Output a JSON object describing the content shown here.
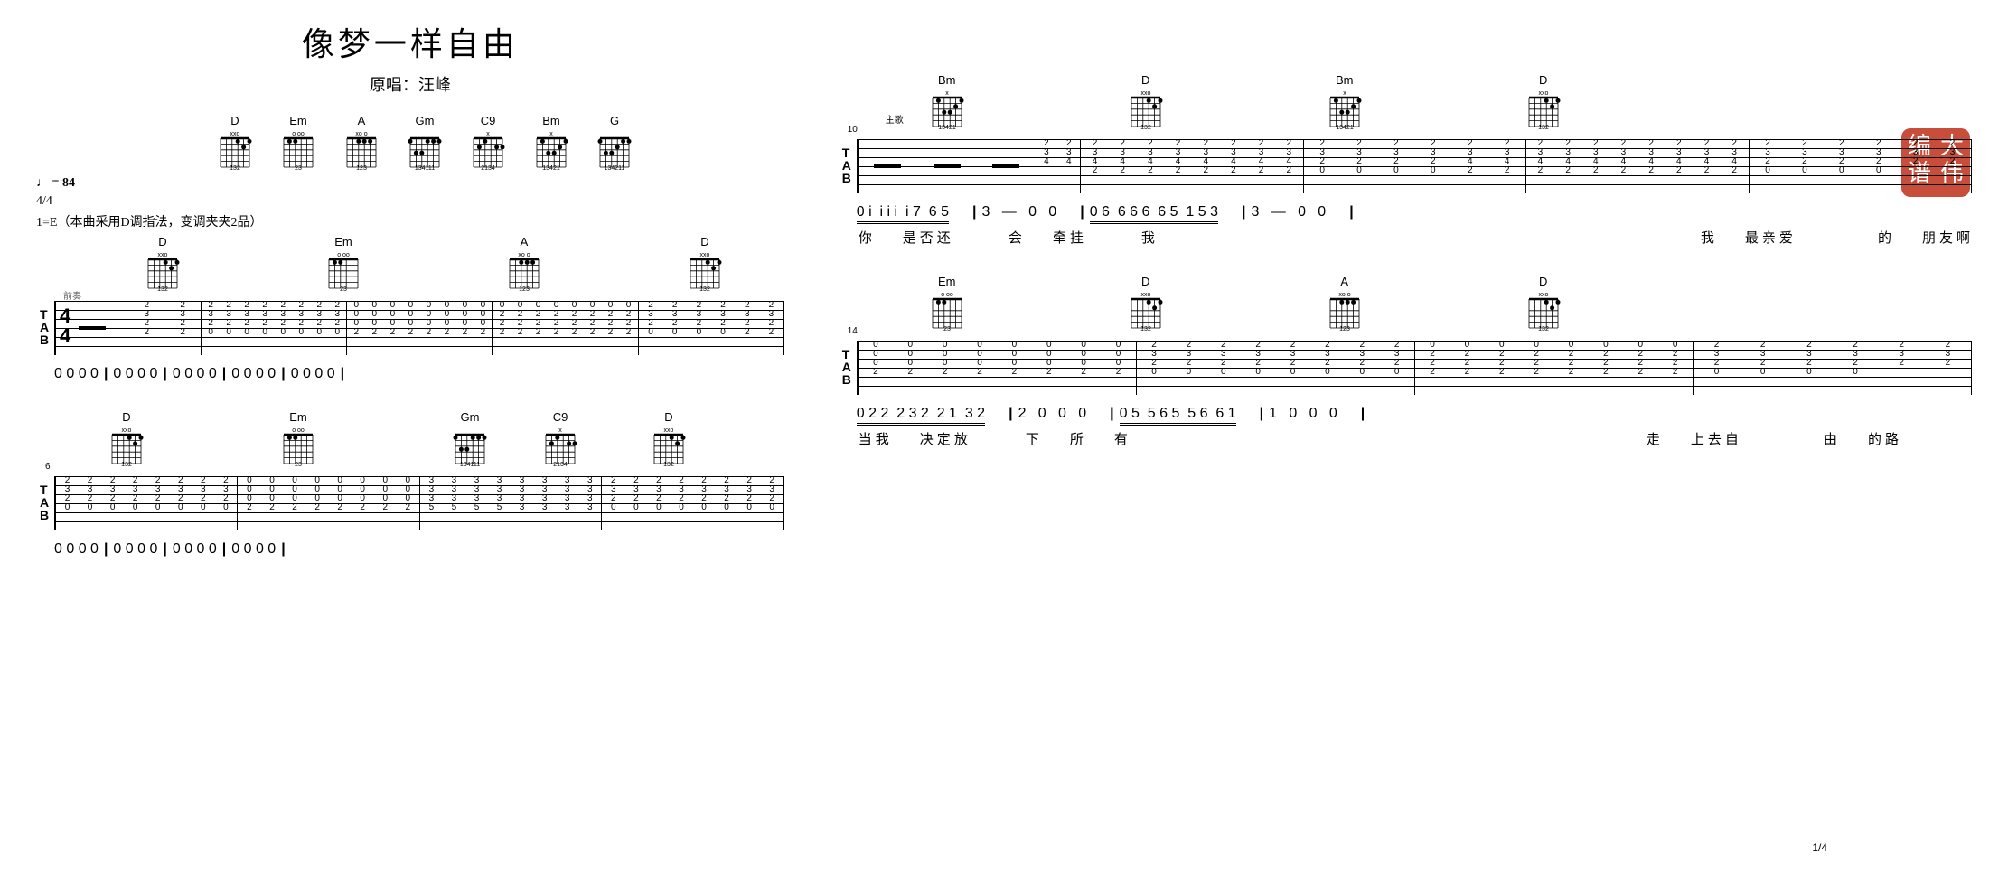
{
  "title": "像梦一样自由",
  "subtitle_prefix": "原唱：",
  "artist": "汪峰",
  "tempo_symbol": "♩",
  "tempo_value": "= 84",
  "timesig": "4/4",
  "key_note": "1=E（本曲采用D调指法，变调夹夹2品）",
  "stamp_text": [
    "大",
    "伟",
    "编",
    "谱"
  ],
  "pagenum": "1/4",
  "intro_label": "前奏",
  "verse_label": "主歌",
  "chord_defs": {
    "D": {
      "name": "D",
      "muted": "xxo",
      "fingers": "132",
      "frets": [
        [
          -1,
          -1,
          0,
          2,
          3,
          2
        ]
      ]
    },
    "Em": {
      "name": "Em",
      "muted": "o   oo",
      "fingers": "23",
      "frets": [
        [
          0,
          2,
          2,
          0,
          0,
          0
        ]
      ]
    },
    "A": {
      "name": "A",
      "muted": "xo   o",
      "fingers": "123",
      "frets": [
        [
          -1,
          0,
          2,
          2,
          2,
          0
        ]
      ]
    },
    "Gm": {
      "name": "Gm",
      "muted": "",
      "fingers": "134111",
      "frets": [
        [
          3,
          5,
          5,
          3,
          3,
          3
        ]
      ]
    },
    "C9": {
      "name": "C9",
      "muted": "x",
      "fingers": "2134",
      "frets": [
        [
          -1,
          3,
          2,
          0,
          3,
          3
        ]
      ]
    },
    "Bm": {
      "name": "Bm",
      "muted": "x",
      "fingers": "13421",
      "frets": [
        [
          -1,
          2,
          4,
          4,
          3,
          2
        ]
      ]
    },
    "G": {
      "name": "G",
      "muted": "",
      "fingers": "134211",
      "frets": [
        [
          3,
          5,
          5,
          4,
          3,
          3
        ]
      ]
    }
  },
  "header_chords": [
    "D",
    "Em",
    "A",
    "Gm",
    "C9",
    "Bm",
    "G"
  ],
  "systems_left": [
    {
      "num": "",
      "chords": [
        "D",
        "Em",
        "A",
        "D"
      ],
      "chord_pos": [
        80,
        280,
        480,
        680
      ],
      "tab_measures": [
        {
          "timesig": true,
          "beats": [
            {
              "rest": true
            },
            {
              "s": [
                "2",
                "3",
                "2"
              ],
              "f": [
                2,
                3,
                4
              ]
            },
            {
              "s": [
                "2",
                "3",
                "2"
              ],
              "f": [
                2,
                3,
                4
              ]
            }
          ]
        },
        {
          "beats": [
            {
              "s": [
                "2",
                "3",
                "2",
                "0"
              ],
              "f": [
                1,
                2,
                3,
                4
              ],
              "rep": 4
            },
            {
              "s": [
                "2",
                "3",
                "2",
                "0"
              ],
              "f": [
                1,
                2,
                3,
                4
              ],
              "rep": 4
            }
          ]
        },
        {
          "beats": [
            {
              "s": [
                "0",
                "0",
                "0",
                "2"
              ],
              "f": [
                1,
                2,
                3,
                4
              ],
              "rep": 4
            },
            {
              "s": [
                "0",
                "0",
                "0",
                "2"
              ],
              "f": [
                1,
                2,
                3,
                4
              ],
              "rep": 4
            }
          ]
        },
        {
          "beats": [
            {
              "s": [
                "0",
                "2",
                "2",
                "2"
              ],
              "f": [
                1,
                2,
                3,
                4
              ],
              "rep": 4
            },
            {
              "s": [
                "0",
                "2",
                "2",
                "2"
              ],
              "f": [
                1,
                2,
                3,
                4
              ],
              "rep": 4
            }
          ]
        },
        {
          "beats": [
            {
              "s": [
                "2",
                "3",
                "2",
                "0"
              ],
              "f": [
                1,
                2,
                3,
                4
              ],
              "rep": 4
            },
            {
              "s": [
                "2",
                "3",
                "2"
              ],
              "f": [
                2,
                3,
                4
              ],
              "rep": 2
            }
          ]
        }
      ],
      "jianpu": "0 0 0 0 | 0   0   0   0 | 0   0   0   0 | 0   0   0   0 | 0   0   0   0",
      "lyrics": ""
    },
    {
      "num": "6",
      "chords": [
        "D",
        "Em",
        "Gm",
        "C9",
        "D"
      ],
      "chord_pos": [
        40,
        230,
        420,
        520,
        640
      ],
      "tab_measures": [
        {
          "beats": [
            {
              "s": [
                "2",
                "3",
                "2",
                "0"
              ],
              "rep": 4
            },
            {
              "s": [
                "2",
                "3",
                "2",
                "0"
              ],
              "rep": 4
            }
          ]
        },
        {
          "beats": [
            {
              "s": [
                "0",
                "0",
                "0",
                "2"
              ],
              "rep": 4
            },
            {
              "s": [
                "0",
                "0",
                "0",
                "2"
              ],
              "rep": 4
            }
          ]
        },
        {
          "beats": [
            {
              "s": [
                "3",
                "3",
                "3",
                "5"
              ],
              "rep": 4
            },
            {
              "s": [
                "3",
                "3",
                "3",
                "3"
              ],
              "rep": 4
            }
          ]
        },
        {
          "beats": [
            {
              "s": [
                "2",
                "3",
                "2",
                "0"
              ],
              "rep": 4
            },
            {
              "s": [
                "2",
                "3",
                "2",
                "0"
              ],
              "rep": 4
            }
          ]
        }
      ],
      "jianpu": "0   0   0   0 | 0   0   0   0 | 0   0   0   0 | 0   0   0   0",
      "lyrics": ""
    }
  ],
  "systems_right": [
    {
      "num": "10",
      "chords": [
        "Bm",
        "D",
        "Bm",
        "D"
      ],
      "chord_pos": [
        60,
        280,
        500,
        720
      ],
      "tab_measures": [
        {
          "beats": [
            {
              "rest": true
            },
            {
              "rest": true
            },
            {
              "rest": true
            },
            {
              "s": [
                "2",
                "3",
                "4"
              ],
              "rep": 2
            }
          ]
        },
        {
          "beats": [
            {
              "s": [
                "2",
                "3",
                "4",
                "2"
              ],
              "rep": 4
            },
            {
              "s": [
                "2",
                "3",
                "4",
                "2"
              ],
              "rep": 4
            }
          ]
        },
        {
          "beats": [
            {
              "s": [
                "2",
                "3",
                "2",
                "0"
              ],
              "rep": 4
            },
            {
              "s": [
                "2",
                "3",
                "4",
                "2"
              ],
              "rep": 2
            }
          ]
        },
        {
          "beats": [
            {
              "s": [
                "2",
                "3",
                "4",
                "2"
              ],
              "rep": 4
            },
            {
              "s": [
                "2",
                "3",
                "4",
                "2"
              ],
              "rep": 4
            }
          ]
        },
        {
          "beats": [
            {
              "s": [
                "2",
                "3",
                "2",
                "0"
              ],
              "rep": 4
            },
            {
              "s": [
                "2",
                "3",
                "2"
              ],
              "rep": 2
            }
          ]
        }
      ],
      "jianpu_parts": [
        {
          "notes": "0 i  i i i  i 7  6 5",
          "underline": true
        },
        {
          "notes": "3   —   0   0",
          "underline": false
        },
        {
          "notes": "0 6  6 6 6  6 5  1 5 3",
          "underline": true
        },
        {
          "notes": "3   —   0   0",
          "underline": false
        }
      ],
      "lyrics": "你 是否还  会 牵挂  我                    我 最亲爱   的 朋友啊"
    },
    {
      "num": "14",
      "chords": [
        "Em",
        "D",
        "A",
        "D"
      ],
      "chord_pos": [
        60,
        280,
        500,
        720
      ],
      "tab_measures": [
        {
          "beats": [
            {
              "s": [
                "0",
                "0",
                "0",
                "2"
              ],
              "rep": 4
            },
            {
              "s": [
                "0",
                "0",
                "0",
                "2"
              ],
              "rep": 4
            }
          ]
        },
        {
          "beats": [
            {
              "s": [
                "2",
                "3",
                "2",
                "0"
              ],
              "rep": 4
            },
            {
              "s": [
                "2",
                "3",
                "2",
                "0"
              ],
              "rep": 4
            }
          ]
        },
        {
          "beats": [
            {
              "s": [
                "0",
                "2",
                "2",
                "2"
              ],
              "rep": 4
            },
            {
              "s": [
                "0",
                "2",
                "2",
                "2"
              ],
              "rep": 4
            }
          ]
        },
        {
          "beats": [
            {
              "s": [
                "2",
                "3",
                "2",
                "0"
              ],
              "rep": 4
            },
            {
              "s": [
                "2",
                "3",
                "2"
              ],
              "rep": 2
            }
          ]
        }
      ],
      "jianpu_parts": [
        {
          "notes": "0 2 2  2 3 2  2 1  3 2",
          "underline": true
        },
        {
          "notes": "2   0   0   0",
          "underline": false
        },
        {
          "notes": "0 5  5 6 5  5 6  6 1",
          "underline": true
        },
        {
          "notes": "1   0   0   0",
          "underline": false
        }
      ],
      "lyrics": "当我 决定放  下 所 有                   走 上去自   由 的路"
    }
  ]
}
